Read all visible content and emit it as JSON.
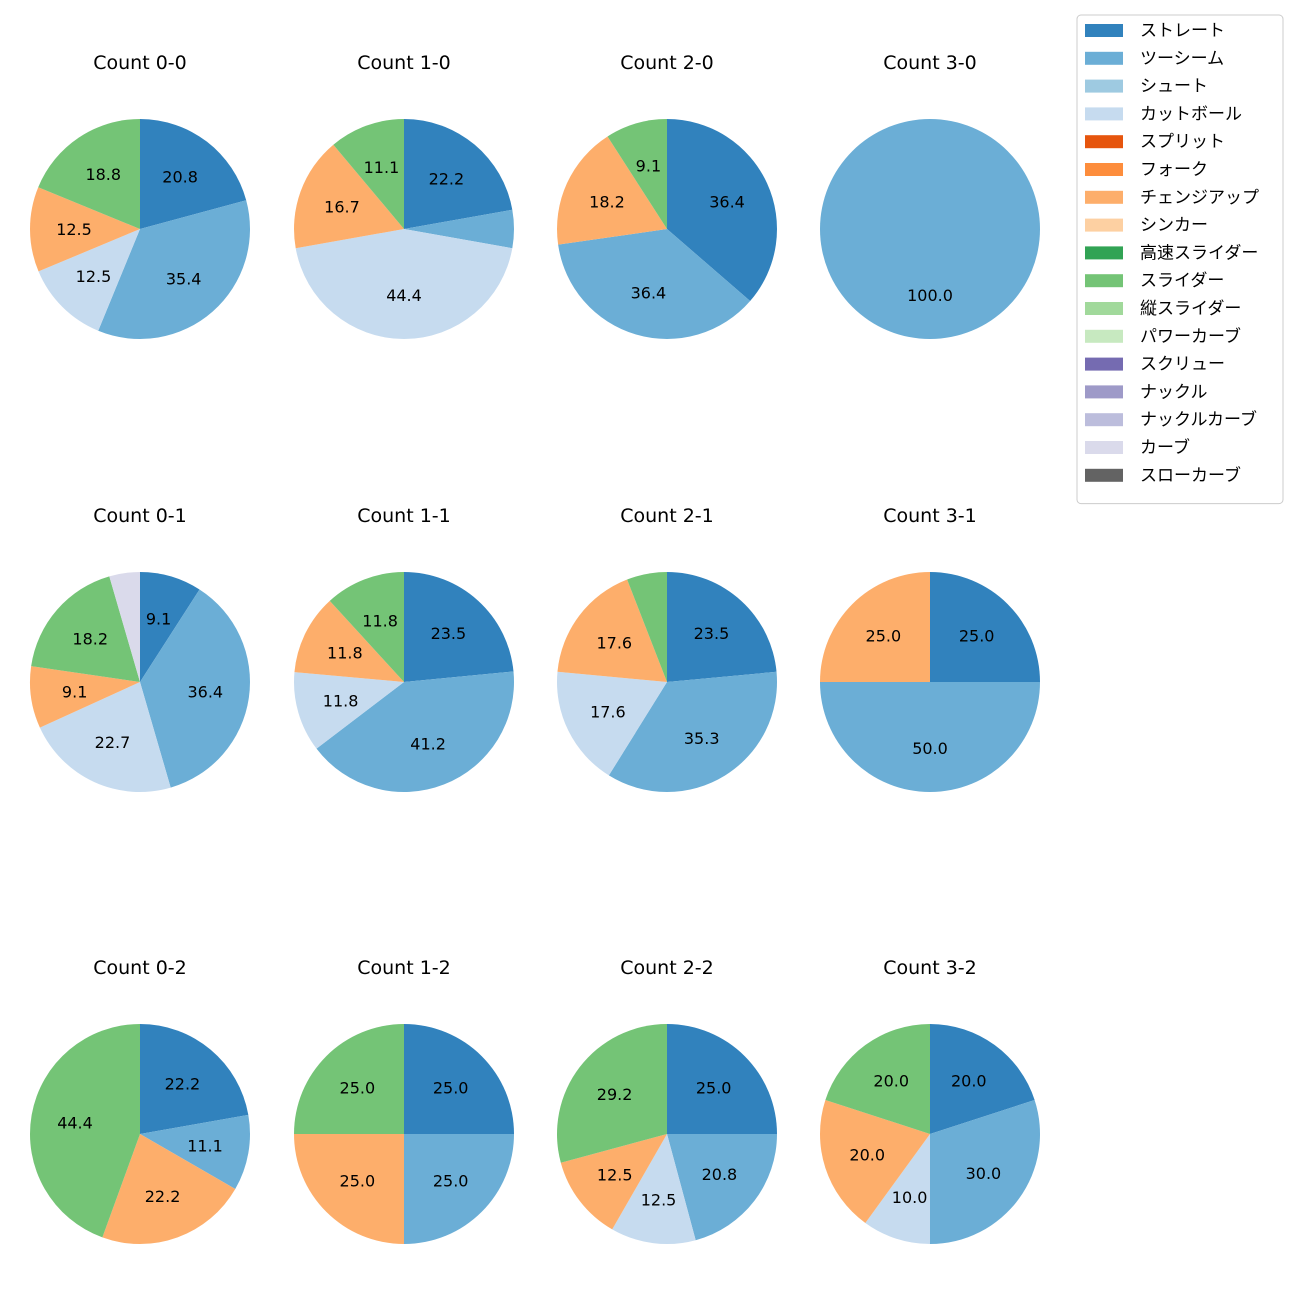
{
  "chart_data": {
    "type": "pie",
    "legend": {
      "placement": "top-right",
      "entries": [
        {
          "name": "ストレート",
          "color": "#3182bd"
        },
        {
          "name": "ツーシーム",
          "color": "#6baed6"
        },
        {
          "name": "シュート",
          "color": "#9ecae1"
        },
        {
          "name": "カットボール",
          "color": "#c6dbef"
        },
        {
          "name": "スプリット",
          "color": "#e6550d"
        },
        {
          "name": "フォーク",
          "color": "#fd8d3c"
        },
        {
          "name": "チェンジアップ",
          "color": "#fdae6b"
        },
        {
          "name": "シンカー",
          "color": "#fdd0a2"
        },
        {
          "name": "高速スライダー",
          "color": "#31a354"
        },
        {
          "name": "スライダー",
          "color": "#74c476"
        },
        {
          "name": "縦スライダー",
          "color": "#a1d99b"
        },
        {
          "name": "パワーカーブ",
          "color": "#c7e9c0"
        },
        {
          "name": "スクリュー",
          "color": "#756bb1"
        },
        {
          "name": "ナックル",
          "color": "#9e9ac8"
        },
        {
          "name": "ナックルカーブ",
          "color": "#bcbddc"
        },
        {
          "name": "カーブ",
          "color": "#dadaeb"
        },
        {
          "name": "スローカーブ",
          "color": "#636363"
        }
      ]
    },
    "pies": [
      {
        "title": "Count 0-0",
        "slices": [
          {
            "pitch": "ストレート",
            "value": 20.8,
            "label": "20.8"
          },
          {
            "pitch": "ツーシーム",
            "value": 35.4,
            "label": "35.4"
          },
          {
            "pitch": "カットボール",
            "value": 12.5,
            "label": "12.5"
          },
          {
            "pitch": "チェンジアップ",
            "value": 12.5,
            "label": "12.5"
          },
          {
            "pitch": "スライダー",
            "value": 18.8,
            "label": "18.8"
          }
        ]
      },
      {
        "title": "Count 1-0",
        "slices": [
          {
            "pitch": "ストレート",
            "value": 22.2,
            "label": "22.2"
          },
          {
            "pitch": "ツーシーム",
            "value": 5.6,
            "label": ""
          },
          {
            "pitch": "カットボール",
            "value": 44.4,
            "label": "44.4"
          },
          {
            "pitch": "チェンジアップ",
            "value": 16.7,
            "label": "16.7"
          },
          {
            "pitch": "スライダー",
            "value": 11.1,
            "label": "11.1"
          }
        ]
      },
      {
        "title": "Count 2-0",
        "slices": [
          {
            "pitch": "ストレート",
            "value": 36.4,
            "label": "36.4"
          },
          {
            "pitch": "ツーシーム",
            "value": 36.4,
            "label": "36.4"
          },
          {
            "pitch": "チェンジアップ",
            "value": 18.2,
            "label": "18.2"
          },
          {
            "pitch": "スライダー",
            "value": 9.1,
            "label": "9.1"
          }
        ]
      },
      {
        "title": "Count 3-0",
        "slices": [
          {
            "pitch": "ツーシーム",
            "value": 100.0,
            "label": "100.0"
          }
        ]
      },
      {
        "title": "Count 0-1",
        "slices": [
          {
            "pitch": "ストレート",
            "value": 9.1,
            "label": "9.1"
          },
          {
            "pitch": "ツーシーム",
            "value": 36.4,
            "label": "36.4"
          },
          {
            "pitch": "カットボール",
            "value": 22.7,
            "label": "22.7"
          },
          {
            "pitch": "チェンジアップ",
            "value": 9.1,
            "label": "9.1"
          },
          {
            "pitch": "スライダー",
            "value": 18.2,
            "label": "18.2"
          },
          {
            "pitch": "カーブ",
            "value": 4.5,
            "label": ""
          }
        ]
      },
      {
        "title": "Count 1-1",
        "slices": [
          {
            "pitch": "ストレート",
            "value": 23.5,
            "label": "23.5"
          },
          {
            "pitch": "ツーシーム",
            "value": 41.2,
            "label": "41.2"
          },
          {
            "pitch": "カットボール",
            "value": 11.8,
            "label": "11.8"
          },
          {
            "pitch": "チェンジアップ",
            "value": 11.8,
            "label": "11.8"
          },
          {
            "pitch": "スライダー",
            "value": 11.8,
            "label": "11.8"
          }
        ]
      },
      {
        "title": "Count 2-1",
        "slices": [
          {
            "pitch": "ストレート",
            "value": 23.5,
            "label": "23.5"
          },
          {
            "pitch": "ツーシーム",
            "value": 35.3,
            "label": "35.3"
          },
          {
            "pitch": "カットボール",
            "value": 17.6,
            "label": "17.6"
          },
          {
            "pitch": "チェンジアップ",
            "value": 17.6,
            "label": "17.6"
          },
          {
            "pitch": "スライダー",
            "value": 5.9,
            "label": ""
          }
        ]
      },
      {
        "title": "Count 3-1",
        "slices": [
          {
            "pitch": "ストレート",
            "value": 25.0,
            "label": "25.0"
          },
          {
            "pitch": "ツーシーム",
            "value": 50.0,
            "label": "50.0"
          },
          {
            "pitch": "チェンジアップ",
            "value": 25.0,
            "label": "25.0"
          }
        ]
      },
      {
        "title": "Count 0-2",
        "slices": [
          {
            "pitch": "ストレート",
            "value": 22.2,
            "label": "22.2"
          },
          {
            "pitch": "ツーシーム",
            "value": 11.1,
            "label": "11.1"
          },
          {
            "pitch": "チェンジアップ",
            "value": 22.2,
            "label": "22.2"
          },
          {
            "pitch": "スライダー",
            "value": 44.4,
            "label": "44.4"
          }
        ]
      },
      {
        "title": "Count 1-2",
        "slices": [
          {
            "pitch": "ストレート",
            "value": 25.0,
            "label": "25.0"
          },
          {
            "pitch": "ツーシーム",
            "value": 25.0,
            "label": "25.0"
          },
          {
            "pitch": "チェンジアップ",
            "value": 25.0,
            "label": "25.0"
          },
          {
            "pitch": "スライダー",
            "value": 25.0,
            "label": "25.0"
          }
        ]
      },
      {
        "title": "Count 2-2",
        "slices": [
          {
            "pitch": "ストレート",
            "value": 25.0,
            "label": "25.0"
          },
          {
            "pitch": "ツーシーム",
            "value": 20.8,
            "label": "20.8"
          },
          {
            "pitch": "カットボール",
            "value": 12.5,
            "label": "12.5"
          },
          {
            "pitch": "チェンジアップ",
            "value": 12.5,
            "label": "12.5"
          },
          {
            "pitch": "スライダー",
            "value": 29.2,
            "label": "29.2"
          }
        ]
      },
      {
        "title": "Count 3-2",
        "slices": [
          {
            "pitch": "ストレート",
            "value": 20.0,
            "label": "20.0"
          },
          {
            "pitch": "ツーシーム",
            "value": 30.0,
            "label": "30.0"
          },
          {
            "pitch": "カットボール",
            "value": 10.0,
            "label": "10.0"
          },
          {
            "pitch": "チェンジアップ",
            "value": 20.0,
            "label": "20.0"
          },
          {
            "pitch": "スライダー",
            "value": 20.0,
            "label": "20.0"
          }
        ]
      }
    ]
  }
}
